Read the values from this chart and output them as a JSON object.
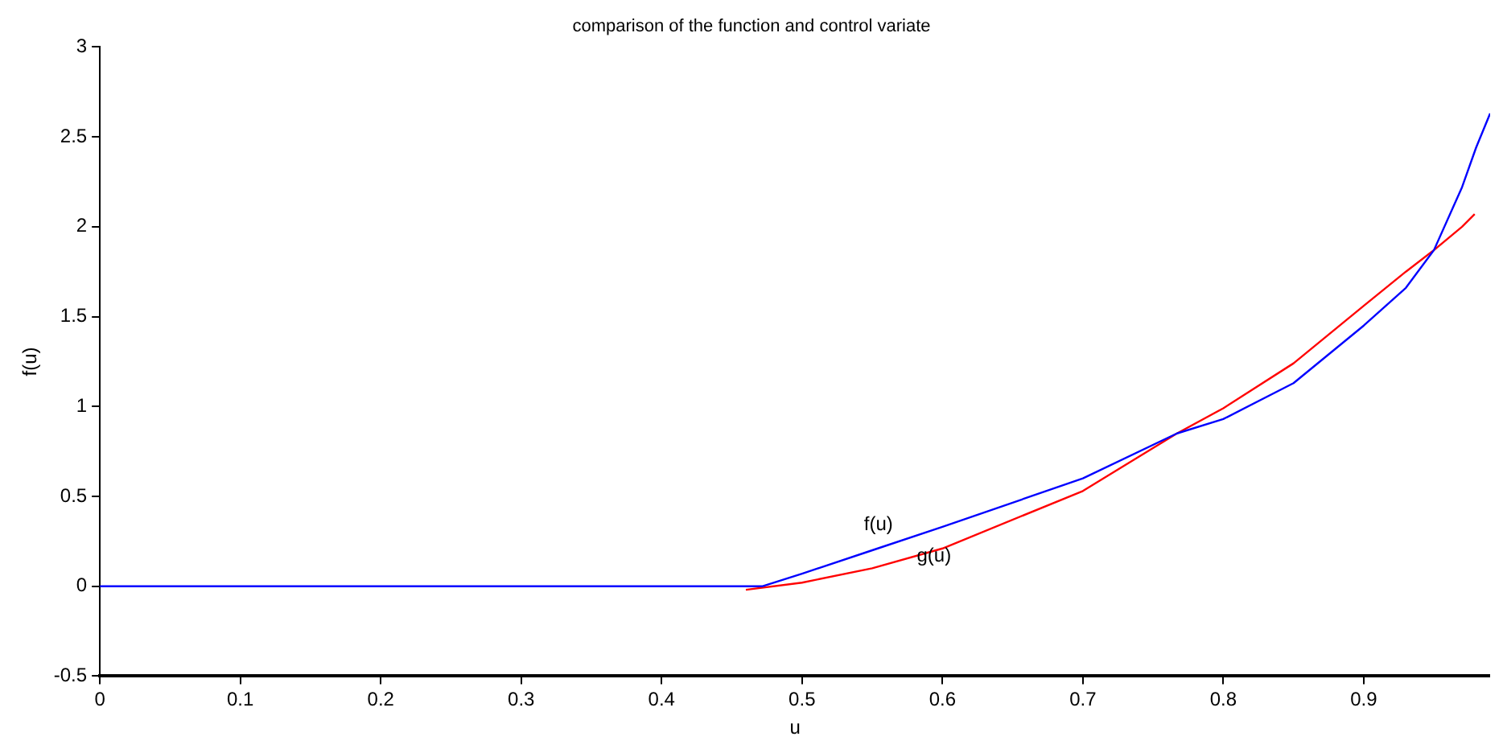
{
  "chart_data": {
    "type": "line",
    "title": "comparison of the function and control variate",
    "xlabel": "u",
    "ylabel": "f(u)",
    "xlim": [
      0,
      0.99
    ],
    "xticks": [
      0,
      0.1,
      0.2,
      0.3,
      0.4,
      0.5,
      0.6,
      0.7,
      0.8,
      0.9
    ],
    "ylim": [
      -0.5,
      3
    ],
    "yticks": [
      -0.5,
      0,
      0.5,
      1,
      1.5,
      2,
      2.5,
      3
    ],
    "grid": false,
    "legend": false,
    "marker": "none",
    "line_style": "solid",
    "series": [
      {
        "color": "#0000ff",
        "x": [
          0,
          0.472,
          0.5,
          0.55,
          0.6,
          0.7,
          0.767,
          0.8,
          0.85,
          0.9,
          0.93,
          0.95,
          0.97,
          0.98,
          0.99
        ],
        "values": [
          0,
          0,
          0.07,
          0.2,
          0.33,
          0.6,
          0.85,
          0.93,
          1.13,
          1.45,
          1.66,
          1.87,
          2.22,
          2.44,
          2.63
        ]
      },
      {
        "color": "#ff0000",
        "x": [
          0.46,
          0.5,
          0.55,
          0.6,
          0.7,
          0.767,
          0.8,
          0.85,
          0.9,
          0.93,
          0.95,
          0.97,
          0.979
        ],
        "values": [
          -0.02,
          0.02,
          0.1,
          0.21,
          0.53,
          0.85,
          0.99,
          1.24,
          1.56,
          1.75,
          1.87,
          2.0,
          2.07
        ]
      }
    ],
    "annotations": [
      "f(u)",
      "g(u)"
    ]
  }
}
